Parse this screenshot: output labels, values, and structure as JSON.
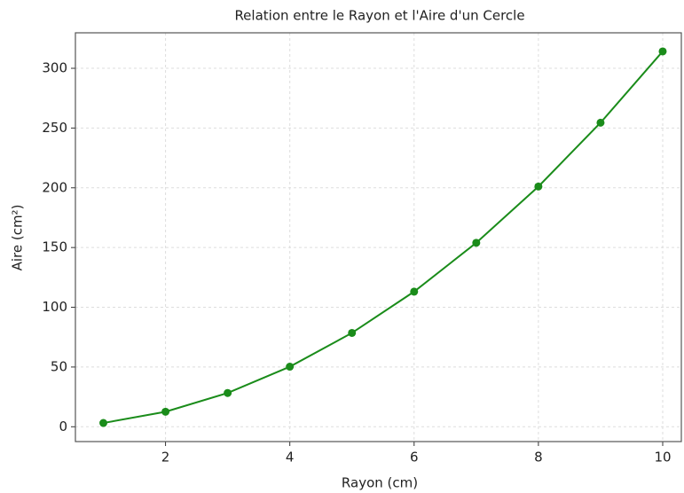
{
  "chart_data": {
    "type": "line",
    "title": "Relation entre le Rayon et l'Aire d'un Cercle",
    "xlabel": "Rayon (cm)",
    "ylabel": "Aire (cm²)",
    "x": [
      1,
      2,
      3,
      4,
      5,
      6,
      7,
      8,
      9,
      10
    ],
    "series": [
      {
        "name": "Aire",
        "color": "#1a8c1a",
        "values": [
          3.14,
          12.57,
          28.27,
          50.27,
          78.54,
          113.1,
          153.94,
          201.06,
          254.47,
          314.16
        ]
      }
    ],
    "xlim": [
      0.55,
      10.3
    ],
    "xticks": [
      2,
      4,
      6,
      8,
      10
    ],
    "ylim": [
      -12.4,
      329.7
    ],
    "yticks": [
      0,
      50,
      100,
      150,
      200,
      250,
      300
    ],
    "grid": true
  }
}
